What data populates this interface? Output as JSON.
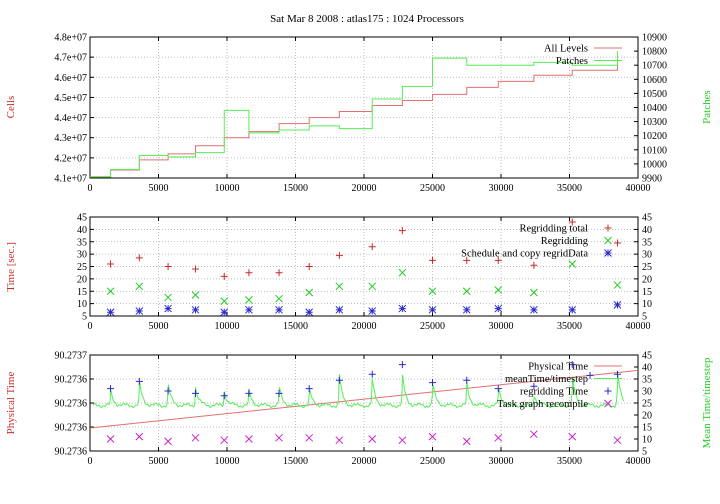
{
  "page_title": "Sat Mar 8 2008 : atlas175 : 1024 Processors",
  "colors": {
    "red": "#cc2a2a",
    "green": "#22cc22",
    "blue": "#2a2acc",
    "magenta": "#cc22cc",
    "pale_red": "#e07070",
    "pale_green": "#55ee55",
    "grid": "#a8a8a8",
    "axis": "#000000"
  },
  "chart_data": [
    {
      "type": "line",
      "title": "Sat Mar 8 2008 : atlas175 : 1024 Processors",
      "xlabel": "",
      "ylabel": "Cells",
      "y2label": "Patches",
      "xlim": [
        0,
        40000
      ],
      "ylim": [
        41000000,
        48000000
      ],
      "y2lim": [
        9900,
        10900
      ],
      "grid": true,
      "legend_position": "top-right",
      "x_ticks": [
        0,
        5000,
        10000,
        15000,
        20000,
        25000,
        30000,
        35000,
        40000
      ],
      "x_tick_labels": [
        "0",
        "5000",
        "10000",
        "15000",
        "20000",
        "25000",
        "30000",
        "35000",
        "40000"
      ],
      "y_ticks": [
        41000000,
        42000000,
        43000000,
        44000000,
        45000000,
        46000000,
        47000000,
        48000000
      ],
      "y_tick_labels": [
        "4.1e+07",
        "4.2e+07",
        "4.3e+07",
        "4.4e+07",
        "4.5e+07",
        "4.6e+07",
        "4.7e+07",
        "4.8e+07"
      ],
      "y2_ticks": [
        9900,
        10000,
        10100,
        10200,
        10300,
        10400,
        10500,
        10600,
        10700,
        10800,
        10900
      ],
      "y2_tick_labels": [
        "9900",
        "10000",
        "10100",
        "10200",
        "10300",
        "10400",
        "10500",
        "10600",
        "10700",
        "10800",
        "10900"
      ],
      "series": [
        {
          "name": "All Levels",
          "axis": "left",
          "style": "step",
          "color": "red",
          "x": [
            0,
            1500,
            3600,
            5700,
            7700,
            9800,
            11600,
            13800,
            16000,
            18200,
            20600,
            22800,
            25000,
            27500,
            29800,
            32400,
            35200,
            38500
          ],
          "y": [
            41050000,
            41400000,
            41900000,
            42200000,
            42600000,
            43000000,
            43300000,
            43700000,
            44000000,
            44300000,
            44600000,
            44850000,
            45150000,
            45500000,
            45800000,
            46100000,
            46350000,
            46700000
          ]
        },
        {
          "name": "Patches",
          "axis": "right",
          "style": "step",
          "color": "green",
          "x": [
            0,
            1500,
            3600,
            5700,
            7700,
            9800,
            11600,
            13800,
            16000,
            18200,
            20600,
            22800,
            25000,
            27500,
            29800,
            32400,
            35200,
            38500
          ],
          "y": [
            9910,
            9960,
            10060,
            10050,
            10080,
            10380,
            10220,
            10240,
            10270,
            10250,
            10460,
            10550,
            10750,
            10700,
            10700,
            10720,
            10700,
            10800
          ]
        }
      ]
    },
    {
      "type": "scatter",
      "title": "",
      "xlabel": "",
      "ylabel": "Time [sec.]",
      "xlim": [
        0,
        40000
      ],
      "ylim": [
        5,
        45
      ],
      "y2lim": [
        5,
        45
      ],
      "grid": true,
      "legend_position": "top-right",
      "x_ticks": [
        0,
        5000,
        10000,
        15000,
        20000,
        25000,
        30000,
        35000,
        40000
      ],
      "x_tick_labels": [
        "0",
        "5000",
        "10000",
        "15000",
        "20000",
        "25000",
        "30000",
        "35000",
        "40000"
      ],
      "y_ticks": [
        5,
        10,
        15,
        20,
        25,
        30,
        35,
        40,
        45
      ],
      "y_tick_labels": [
        "5",
        "10",
        "15",
        "20",
        "25",
        "30",
        "35",
        "40",
        "45"
      ],
      "y2_ticks": [
        5,
        10,
        15,
        20,
        25,
        30,
        35,
        40,
        45
      ],
      "y2_tick_labels": [
        "5",
        "10",
        "15",
        "20",
        "25",
        "30",
        "35",
        "40",
        "45"
      ],
      "series": [
        {
          "name": "Regridding total",
          "marker": "plus",
          "color": "red",
          "x": [
            1500,
            3600,
            5700,
            7700,
            9800,
            11600,
            13800,
            16000,
            18200,
            20600,
            22800,
            25000,
            27500,
            29800,
            32400,
            35200,
            38500
          ],
          "y": [
            26,
            28.5,
            25,
            24,
            21,
            22.5,
            22.5,
            25,
            29.5,
            33,
            39.5,
            27.5,
            27.5,
            27.5,
            25.5,
            43,
            34.5
          ]
        },
        {
          "name": "Regridding",
          "marker": "cross",
          "color": "green",
          "x": [
            1500,
            3600,
            5700,
            7700,
            9800,
            11600,
            13800,
            16000,
            18200,
            20600,
            22800,
            25000,
            27500,
            29800,
            32400,
            35200,
            38500
          ],
          "y": [
            15,
            17,
            12.5,
            13.5,
            11,
            11.5,
            12,
            14.5,
            17,
            17,
            22.5,
            15,
            15,
            15.5,
            14.5,
            26,
            17.5
          ]
        },
        {
          "name": "Schedule and copy regridData",
          "marker": "star",
          "color": "blue",
          "x": [
            1500,
            3600,
            5700,
            7700,
            9800,
            11600,
            13800,
            16000,
            18200,
            20600,
            22800,
            25000,
            27500,
            29800,
            32400,
            35200,
            38500
          ],
          "y": [
            6.5,
            7,
            8,
            7.5,
            6.5,
            7.5,
            7.5,
            6.5,
            7.5,
            7,
            8,
            7.5,
            7.5,
            8,
            7.5,
            7.5,
            9.5
          ]
        }
      ]
    },
    {
      "type": "line",
      "title": "",
      "xlabel": "",
      "ylabel": "Physical Time",
      "y2label": "Mean Time/timestep",
      "xlim": [
        0,
        40000
      ],
      "ylim": [
        90.27355,
        90.27375
      ],
      "y2lim": [
        5,
        45
      ],
      "grid": true,
      "legend_position": "top-right",
      "x_ticks": [
        0,
        5000,
        10000,
        15000,
        20000,
        25000,
        30000,
        35000,
        40000
      ],
      "x_tick_labels": [
        "0",
        "5000",
        "10000",
        "15000",
        "20000",
        "25000",
        "30000",
        "35000",
        "40000"
      ],
      "y_ticks": [
        90.27355,
        90.2736,
        90.27365,
        90.2737,
        90.27375
      ],
      "y_tick_labels": [
        "90.2736",
        "90.2736",
        "90.2736",
        "90.2736",
        "90.2737"
      ],
      "y2_ticks": [
        5,
        10,
        15,
        20,
        25,
        30,
        35,
        40,
        45
      ],
      "y2_tick_labels": [
        "5",
        "10",
        "15",
        "20",
        "25",
        "30",
        "35",
        "40",
        "45"
      ],
      "series": [
        {
          "name": "Physical Time",
          "axis": "left",
          "style": "line",
          "color": "red",
          "x": [
            0,
            40000
          ],
          "y": [
            90.273598,
            90.273718
          ]
        },
        {
          "name": "meanTime/timestep",
          "axis": "right",
          "style": "line",
          "color": "green",
          "baseline": 24,
          "spike_x": [
            1500,
            3600,
            5700,
            7700,
            9800,
            11600,
            13800,
            16000,
            18200,
            20600,
            22800,
            25000,
            27500,
            29800,
            32400,
            35200,
            38500
          ],
          "spike_y": [
            30,
            34,
            33,
            32,
            30,
            30,
            32,
            31,
            37,
            35,
            37,
            34,
            33,
            32,
            29,
            37,
            39
          ]
        },
        {
          "name": "regridding Time",
          "axis": "right",
          "marker": "plus",
          "color": "blue",
          "x": [
            1500,
            3600,
            5700,
            7700,
            9800,
            11600,
            13800,
            16000,
            18200,
            20600,
            22800,
            25000,
            27500,
            29800,
            32400,
            35200,
            36500,
            38500
          ],
          "y": [
            31,
            34,
            30,
            29,
            28,
            29,
            29,
            31,
            34.5,
            37,
            41,
            33.5,
            34.5,
            31,
            32,
            41,
            36.5,
            37
          ]
        },
        {
          "name": "Task graph recompile",
          "axis": "right",
          "marker": "cross",
          "color": "magenta",
          "x": [
            1500,
            3600,
            5700,
            7700,
            9800,
            11600,
            13800,
            16000,
            18200,
            20600,
            22800,
            25000,
            27500,
            29800,
            32400,
            35200,
            38500
          ],
          "y": [
            10,
            11,
            9,
            10.5,
            9.5,
            10,
            10.5,
            10.5,
            9.5,
            10,
            9.5,
            11,
            9,
            10.5,
            12,
            11,
            9.5
          ]
        }
      ]
    }
  ]
}
